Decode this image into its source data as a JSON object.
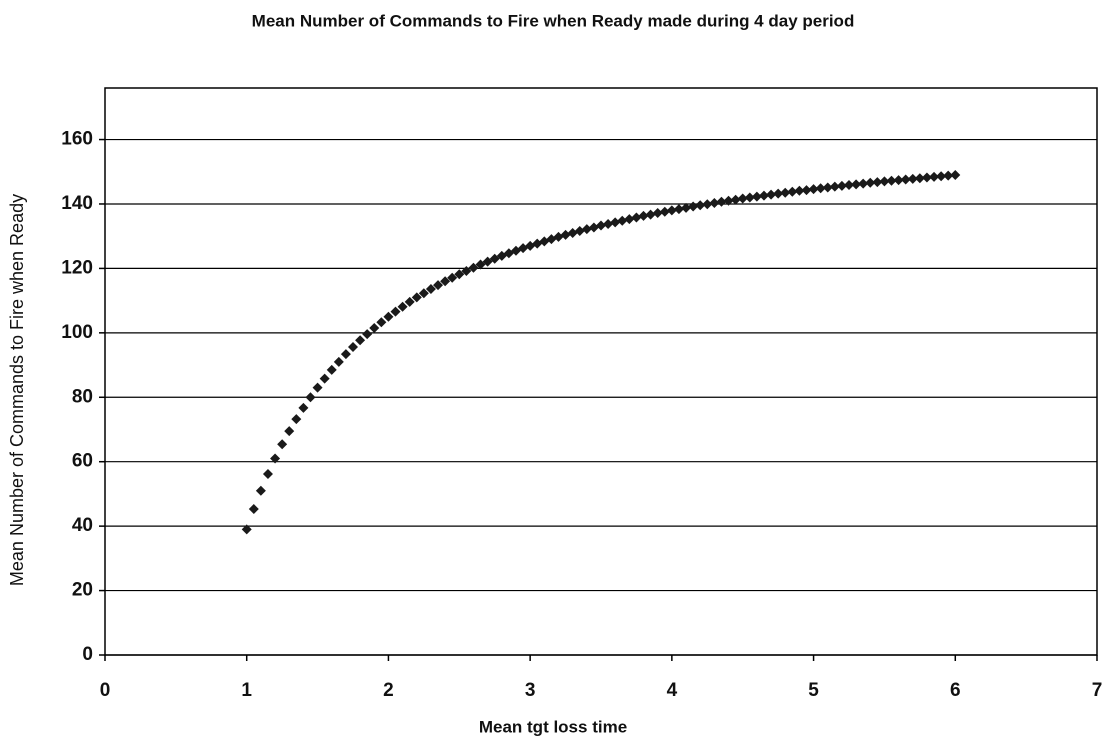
{
  "chart_data": {
    "type": "scatter",
    "title": "Mean Number of Commands to Fire when Ready made during 4 day period",
    "x_label": "Mean tgt loss time",
    "y_label": "Mean Number of Commands to Fire when Ready",
    "xlim": [
      0,
      7
    ],
    "xticks": [
      0,
      1,
      2,
      3,
      4,
      5,
      6,
      7
    ],
    "ylim": [
      0,
      176
    ],
    "yticks": [
      0,
      20,
      40,
      60,
      80,
      100,
      120,
      140,
      160
    ],
    "grid": true,
    "color": "#1a1a1a",
    "x": [
      1.0,
      1.05,
      1.1,
      1.15,
      1.2,
      1.25,
      1.3,
      1.35,
      1.4,
      1.45,
      1.5,
      1.55,
      1.6,
      1.65,
      1.7,
      1.75,
      1.8,
      1.85,
      1.9,
      1.95,
      2.0,
      2.05,
      2.1,
      2.15,
      2.2,
      2.25,
      2.3,
      2.35,
      2.4,
      2.45,
      2.5,
      2.55,
      2.6,
      2.65,
      2.7,
      2.75,
      2.8,
      2.85,
      2.9,
      2.95,
      3.0,
      3.05,
      3.1,
      3.15,
      3.2,
      3.25,
      3.3,
      3.35,
      3.4,
      3.45,
      3.5,
      3.55,
      3.6,
      3.65,
      3.7,
      3.75,
      3.8,
      3.85,
      3.9,
      3.95,
      4.0,
      4.05,
      4.1,
      4.15,
      4.2,
      4.25,
      4.3,
      4.35,
      4.4,
      4.45,
      4.5,
      4.55,
      4.6,
      4.65,
      4.7,
      4.75,
      4.8,
      4.85,
      4.9,
      4.95,
      5.0,
      5.05,
      5.1,
      5.15,
      5.2,
      5.25,
      5.3,
      5.35,
      5.4,
      5.45,
      5.5,
      5.55,
      5.6,
      5.65,
      5.7,
      5.75,
      5.8,
      5.85,
      5.9,
      5.95,
      6.0
    ],
    "values": [
      39.0,
      45.3,
      51.0,
      56.2,
      61.0,
      65.4,
      69.5,
      73.2,
      76.7,
      80.0,
      83.0,
      85.8,
      88.5,
      91.0,
      93.4,
      95.6,
      97.7,
      99.6,
      101.5,
      103.3,
      105.0,
      106.6,
      108.1,
      109.6,
      111.0,
      112.3,
      113.6,
      114.8,
      116.0,
      117.1,
      118.2,
      119.2,
      120.2,
      121.2,
      122.1,
      123.0,
      123.9,
      124.7,
      125.5,
      126.3,
      127.0,
      127.7,
      128.4,
      129.1,
      129.8,
      130.4,
      131.0,
      131.6,
      132.2,
      132.7,
      133.3,
      133.8,
      134.3,
      134.8,
      135.3,
      135.8,
      136.3,
      136.7,
      137.2,
      137.6,
      138.0,
      138.4,
      138.8,
      139.2,
      139.6,
      139.9,
      140.3,
      140.7,
      141.0,
      141.3,
      141.7,
      142.0,
      142.3,
      142.6,
      142.9,
      143.2,
      143.5,
      143.8,
      144.1,
      144.3,
      144.6,
      144.9,
      145.1,
      145.4,
      145.6,
      145.9,
      146.1,
      146.3,
      146.6,
      146.8,
      147.0,
      147.2,
      147.4,
      147.6,
      147.8,
      148.0,
      148.2,
      148.4,
      148.6,
      148.8,
      149.0
    ]
  }
}
